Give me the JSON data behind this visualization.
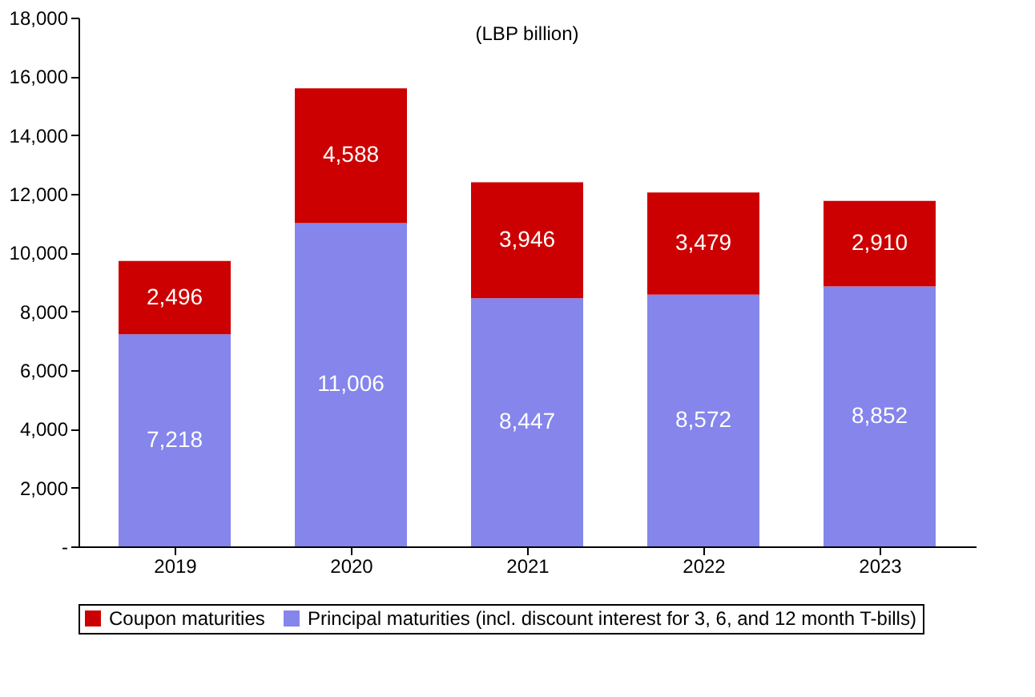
{
  "chart_data": {
    "type": "bar",
    "stacked": true,
    "categories": [
      "2019",
      "2020",
      "2021",
      "2022",
      "2023"
    ],
    "series": [
      {
        "name": "Principal maturities (incl. discount interest for 3, 6, and 12 month T-bills)",
        "color": "#8585ec",
        "values": [
          7218,
          11006,
          8447,
          8572,
          8852
        ],
        "value_labels": [
          "7,218",
          "11,006",
          "8,447",
          "8,572",
          "8,852"
        ]
      },
      {
        "name": "Coupon maturities",
        "color": "#cc0000",
        "values": [
          2496,
          4588,
          3946,
          3479,
          2910
        ],
        "value_labels": [
          "2,496",
          "4,588",
          "3,946",
          "3,479",
          "2,910"
        ]
      }
    ],
    "ylim": [
      0,
      18000
    ],
    "yticks": [
      {
        "value": 0,
        "label": "-"
      },
      {
        "value": 2000,
        "label": "2,000"
      },
      {
        "value": 4000,
        "label": "4,000"
      },
      {
        "value": 6000,
        "label": "6,000"
      },
      {
        "value": 8000,
        "label": "8,000"
      },
      {
        "value": 10000,
        "label": "10,000"
      },
      {
        "value": 12000,
        "label": "12,000"
      },
      {
        "value": 14000,
        "label": "14,000"
      },
      {
        "value": 16000,
        "label": "16,000"
      },
      {
        "value": 18000,
        "label": "18,000"
      }
    ],
    "annotations": [
      "(LBP billion)"
    ],
    "grid": false,
    "legend": "bottom"
  }
}
